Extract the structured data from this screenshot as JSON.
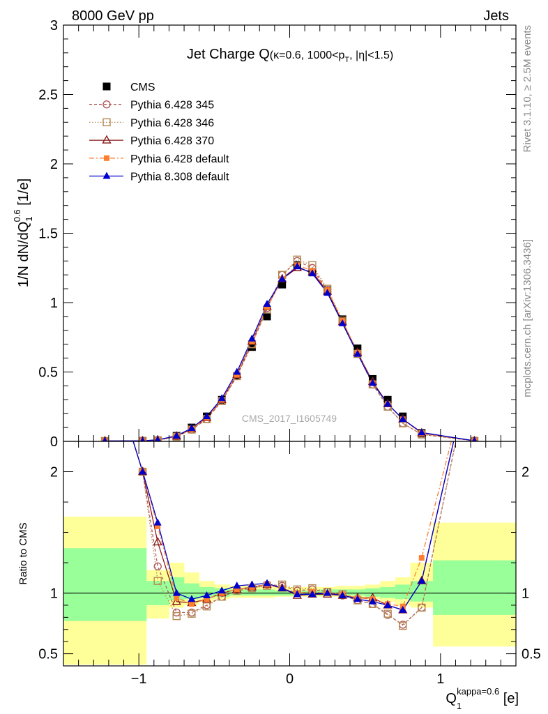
{
  "header": {
    "left": "8000 GeV pp",
    "right": "Jets"
  },
  "side_text": {
    "rivet": "Rivet 3.1.10, ≥ 2.5M events",
    "mcplots": "mcplots.cern.ch [arXiv:1306.3436]"
  },
  "watermark": "CMS_2017_I1605749",
  "main_title": {
    "main": "Jet Charge Q",
    "detail": "(κ=0.6, 1000<p",
    "sub": "T",
    "tail": ", |η|<1.5)"
  },
  "ylabel_top": {
    "pre": "1/N dN/dQ",
    "sub": "1",
    "sup": "0.6",
    "post": " [1/e]"
  },
  "ylabel_bottom": "Ratio to CMS",
  "xlabel": {
    "main": "Q",
    "sub": "1",
    "sup": "kappa=0.6",
    "post": " [e]"
  },
  "chart_data": [
    {
      "type": "line",
      "panel": "distribution",
      "xlim": [
        -1.5,
        1.5
      ],
      "ylim": [
        0,
        3
      ],
      "x_ticks": [
        -1,
        0,
        1
      ],
      "y_ticks": [
        0,
        0.5,
        1,
        1.5,
        2,
        2.5,
        3
      ],
      "y_tick_labels": [
        "0",
        "0.5",
        "1",
        "1.5",
        "2",
        "2.5",
        "3"
      ],
      "legend_position": "top-left",
      "x": [
        -1.225,
        -0.975,
        -0.875,
        -0.75,
        -0.65,
        -0.55,
        -0.45,
        -0.35,
        -0.25,
        -0.15,
        -0.05,
        0.05,
        0.15,
        0.25,
        0.35,
        0.45,
        0.55,
        0.65,
        0.75,
        0.875,
        1.225
      ],
      "series": [
        {
          "name": "CMS",
          "color": "#000000",
          "marker": "square-filled",
          "values": [
            0.001,
            0.002,
            0.007,
            0.04,
            0.1,
            0.18,
            0.3,
            0.47,
            0.68,
            0.9,
            1.13,
            1.27,
            1.22,
            1.09,
            0.88,
            0.67,
            0.45,
            0.3,
            0.18,
            0.06,
            0.003
          ]
        },
        {
          "name": "Pythia 6.428 345",
          "color": "#b35a5a",
          "marker": "circle-open",
          "dash": "4,3",
          "values": [
            0.003,
            0.004,
            0.009,
            0.035,
            0.085,
            0.16,
            0.29,
            0.47,
            0.7,
            0.96,
            1.2,
            1.3,
            1.25,
            1.09,
            0.86,
            0.63,
            0.41,
            0.25,
            0.13,
            0.05,
            0.004
          ]
        },
        {
          "name": "Pythia 6.428 346",
          "color": "#b38a50",
          "marker": "square-open",
          "dash": "1.5,2.5",
          "values": [
            0.003,
            0.004,
            0.008,
            0.033,
            0.085,
            0.16,
            0.29,
            0.47,
            0.7,
            0.95,
            1.2,
            1.31,
            1.27,
            1.1,
            0.87,
            0.63,
            0.41,
            0.25,
            0.13,
            0.05,
            0.004
          ]
        },
        {
          "name": "Pythia 6.428 370",
          "color": "#8b1a1a",
          "marker": "triangle-open",
          "dash": "",
          "values": [
            0.003,
            0.004,
            0.01,
            0.037,
            0.09,
            0.17,
            0.3,
            0.48,
            0.72,
            0.97,
            1.17,
            1.25,
            1.22,
            1.08,
            0.86,
            0.64,
            0.43,
            0.27,
            0.16,
            0.06,
            0.004
          ]
        },
        {
          "name": "Pythia 6.428 default",
          "color": "#ff7f32",
          "marker": "square-filled-small",
          "dash": "7,3,2,3",
          "values": [
            0.003,
            0.004,
            0.01,
            0.038,
            0.09,
            0.17,
            0.3,
            0.48,
            0.72,
            0.97,
            1.17,
            1.27,
            1.23,
            1.09,
            0.87,
            0.64,
            0.42,
            0.27,
            0.16,
            0.06,
            0.004
          ]
        },
        {
          "name": "Pythia 8.308 default",
          "color": "#0000cc",
          "marker": "triangle-filled",
          "dash": "",
          "values": [
            0.003,
            0.004,
            0.011,
            0.04,
            0.095,
            0.18,
            0.31,
            0.5,
            0.74,
            0.99,
            1.17,
            1.26,
            1.21,
            1.07,
            0.85,
            0.63,
            0.42,
            0.27,
            0.16,
            0.064,
            0.004
          ]
        }
      ]
    },
    {
      "type": "line",
      "panel": "ratio",
      "ylabel": "Ratio to CMS",
      "xlim": [
        -1.5,
        1.5
      ],
      "ylim": [
        0.4,
        2.25
      ],
      "x_ticks": [
        -1,
        0,
        1
      ],
      "x_tick_labels": [
        "−1",
        "0",
        "1"
      ],
      "y_ticks": [
        0.5,
        1,
        2
      ],
      "y_tick_labels": [
        "0.5",
        "1",
        "2"
      ],
      "reference_line": 1,
      "bands": {
        "x_edges": [
          -1.5,
          -0.95,
          -0.8,
          -0.7,
          -0.6,
          -0.5,
          -0.4,
          -0.3,
          -0.2,
          -0.1,
          0.0,
          0.1,
          0.2,
          0.3,
          0.4,
          0.5,
          0.6,
          0.7,
          0.8,
          0.95,
          1.5
        ],
        "outer_lo": [
          0.41,
          0.79,
          0.88,
          0.9,
          0.93,
          0.95,
          0.96,
          0.96,
          0.96,
          0.97,
          0.97,
          0.97,
          0.97,
          0.97,
          0.96,
          0.95,
          0.93,
          0.9,
          0.88,
          0.56
        ],
        "outer_hi": [
          1.63,
          1.19,
          1.25,
          1.17,
          1.1,
          1.07,
          1.06,
          1.06,
          1.05,
          1.05,
          1.05,
          1.05,
          1.05,
          1.06,
          1.06,
          1.07,
          1.1,
          1.13,
          1.25,
          1.58
        ],
        "inner_lo": [
          0.77,
          0.9,
          0.94,
          0.95,
          0.96,
          0.97,
          0.98,
          0.98,
          0.98,
          0.98,
          0.98,
          0.98,
          0.98,
          0.98,
          0.98,
          0.97,
          0.96,
          0.95,
          0.93,
          0.82
        ],
        "inner_hi": [
          1.37,
          1.1,
          1.13,
          1.08,
          1.05,
          1.04,
          1.03,
          1.03,
          1.03,
          1.02,
          1.02,
          1.02,
          1.03,
          1.03,
          1.03,
          1.04,
          1.05,
          1.07,
          1.1,
          1.27
        ],
        "outer_color": "#ffff99",
        "inner_color": "#99ff99"
      },
      "x": [
        -1.225,
        -0.975,
        -0.875,
        -0.75,
        -0.65,
        -0.55,
        -0.45,
        -0.35,
        -0.25,
        -0.15,
        -0.05,
        0.05,
        0.15,
        0.25,
        0.35,
        0.45,
        0.55,
        0.65,
        0.75,
        0.875,
        1.225
      ],
      "series": [
        {
          "name": "Pythia 6.428 345",
          "color": "#b35a5a",
          "marker": "circle-open",
          "dash": "4,3",
          "values": [
            3.0,
            2.0,
            1.22,
            0.84,
            0.84,
            0.9,
            0.97,
            1.02,
            1.04,
            1.07,
            1.06,
            1.02,
            1.03,
            1.01,
            0.98,
            0.94,
            0.91,
            0.82,
            0.74,
            0.88,
            3.0
          ]
        },
        {
          "name": "Pythia 6.428 346",
          "color": "#b38a50",
          "marker": "square-open",
          "dash": "1.5,2.5",
          "values": [
            3.0,
            2.0,
            1.1,
            0.81,
            0.83,
            0.89,
            0.97,
            1.02,
            1.04,
            1.06,
            1.07,
            1.03,
            1.04,
            1.01,
            0.99,
            0.94,
            0.91,
            0.83,
            0.73,
            0.88,
            3.0
          ]
        },
        {
          "name": "Pythia 6.428 370",
          "color": "#8b1a1a",
          "marker": "triangle-open",
          "dash": "",
          "values": [
            3.0,
            2.0,
            1.42,
            0.93,
            0.92,
            0.95,
            1.0,
            1.03,
            1.05,
            1.07,
            1.04,
            0.98,
            0.99,
            0.99,
            0.98,
            0.96,
            0.96,
            0.9,
            0.86,
            1.1,
            3.0
          ]
        },
        {
          "name": "Pythia 6.428 default",
          "color": "#ff7f32",
          "marker": "square-filled-small",
          "dash": "7,3,2,3",
          "values": [
            3.0,
            2.0,
            1.55,
            0.96,
            0.91,
            0.95,
            1.0,
            1.03,
            1.05,
            1.07,
            1.04,
            1.0,
            1.01,
            1.0,
            0.99,
            0.96,
            0.95,
            0.91,
            0.89,
            1.29,
            3.0
          ]
        },
        {
          "name": "Pythia 8.308 default",
          "color": "#0000cc",
          "marker": "triangle-filled",
          "dash": "",
          "values": [
            3.0,
            2.0,
            1.58,
            1.0,
            0.95,
            0.98,
            1.02,
            1.06,
            1.07,
            1.08,
            1.04,
            0.99,
            0.99,
            1.0,
            0.98,
            0.95,
            0.93,
            0.9,
            0.86,
            1.1,
            3.0
          ]
        }
      ]
    }
  ]
}
